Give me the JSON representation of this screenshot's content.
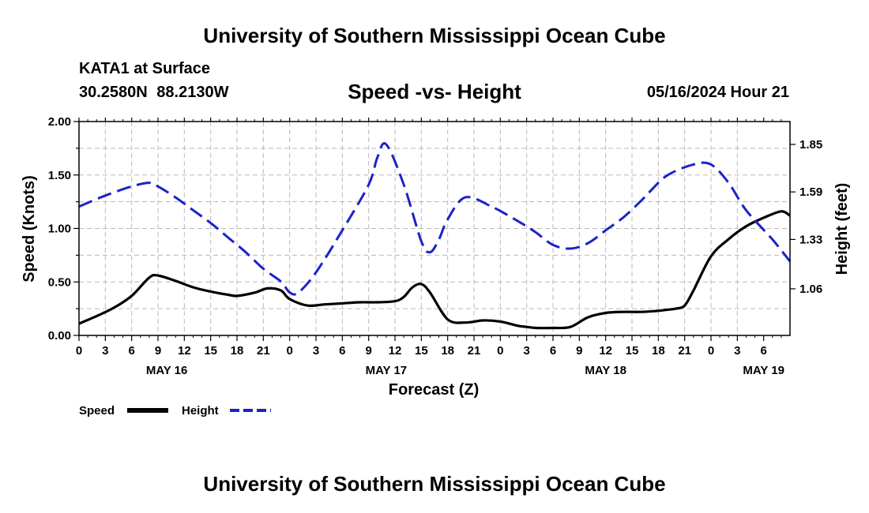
{
  "header": {
    "title": "University of Southern Mississippi Ocean Cube",
    "station": "KATA1 at Surface",
    "coordinates": "30.2580N 88.2130W",
    "subtitle": "Speed -vs- Height",
    "datetime": "05/16/2024 Hour 21"
  },
  "footer": {
    "title": "University of Southern Mississippi Ocean Cube"
  },
  "chart_data": {
    "type": "line",
    "title": "Speed -vs- Height",
    "xlabel": "Forecast (Z)",
    "ylabel": "Speed (Knots)",
    "y2label": "Height (feet)",
    "x_hours_range": [
      0,
      81
    ],
    "ylim": [
      0,
      2.0
    ],
    "y2lim": [
      0.805,
      1.975
    ],
    "x_tick_labels": [
      "0",
      "3",
      "6",
      "9",
      "12",
      "15",
      "18",
      "21",
      "0",
      "3",
      "6",
      "9",
      "12",
      "15",
      "18",
      "21",
      "0",
      "3",
      "6",
      "9",
      "12",
      "15",
      "18",
      "21",
      "0",
      "3",
      "6"
    ],
    "date_labels": [
      {
        "label": "MAY 16",
        "hour": 10
      },
      {
        "label": "MAY 17",
        "hour": 35
      },
      {
        "label": "MAY 18",
        "hour": 60
      },
      {
        "label": "MAY 19",
        "hour": 78
      }
    ],
    "y_ticks": [
      "0.00",
      "0.50",
      "1.00",
      "1.50",
      "2.00"
    ],
    "y2_ticks": [
      "1.06",
      "1.33",
      "1.59",
      "1.85"
    ],
    "grid": true,
    "legend": [
      "Speed",
      "Height"
    ],
    "series": [
      {
        "name": "Speed",
        "axis": "left",
        "color": "#000000",
        "style": "solid",
        "x": [
          0,
          2,
          4,
          6,
          8,
          9,
          11,
          13,
          15,
          17,
          18,
          20,
          21.5,
          23,
          24,
          26,
          28,
          30,
          32,
          34,
          36,
          37,
          38,
          39,
          40,
          42,
          44,
          46,
          48,
          50,
          51,
          52,
          54,
          56,
          58,
          60,
          62,
          64,
          66,
          67,
          68,
          69,
          70,
          72,
          74,
          76,
          78,
          80,
          81
        ],
        "values": [
          0.11,
          0.18,
          0.26,
          0.37,
          0.54,
          0.56,
          0.51,
          0.45,
          0.41,
          0.38,
          0.37,
          0.4,
          0.44,
          0.42,
          0.34,
          0.28,
          0.29,
          0.3,
          0.31,
          0.31,
          0.32,
          0.36,
          0.45,
          0.48,
          0.4,
          0.15,
          0.12,
          0.14,
          0.13,
          0.09,
          0.08,
          0.07,
          0.07,
          0.08,
          0.17,
          0.21,
          0.22,
          0.22,
          0.23,
          0.24,
          0.25,
          0.28,
          0.42,
          0.74,
          0.9,
          1.02,
          1.1,
          1.16,
          1.12
        ]
      },
      {
        "name": "Height",
        "axis": "right",
        "color": "#1c22c8",
        "style": "dashed",
        "x": [
          0,
          3,
          6,
          8,
          9,
          11,
          13,
          15,
          17,
          19,
          21,
          23,
          24,
          25,
          27,
          30,
          33,
          34,
          35,
          37,
          39,
          40,
          41,
          42,
          44,
          47,
          50,
          52,
          54,
          56,
          58,
          60,
          62,
          64,
          65,
          67,
          70,
          72,
          74,
          76,
          79,
          81
        ],
        "values": [
          1.51,
          1.57,
          1.62,
          1.64,
          1.62,
          1.56,
          1.49,
          1.42,
          1.34,
          1.26,
          1.17,
          1.1,
          1.04,
          1.04,
          1.15,
          1.38,
          1.63,
          1.78,
          1.85,
          1.63,
          1.32,
          1.26,
          1.33,
          1.44,
          1.56,
          1.51,
          1.43,
          1.37,
          1.3,
          1.28,
          1.31,
          1.38,
          1.45,
          1.54,
          1.59,
          1.68,
          1.74,
          1.74,
          1.64,
          1.49,
          1.33,
          1.21
        ]
      }
    ]
  }
}
